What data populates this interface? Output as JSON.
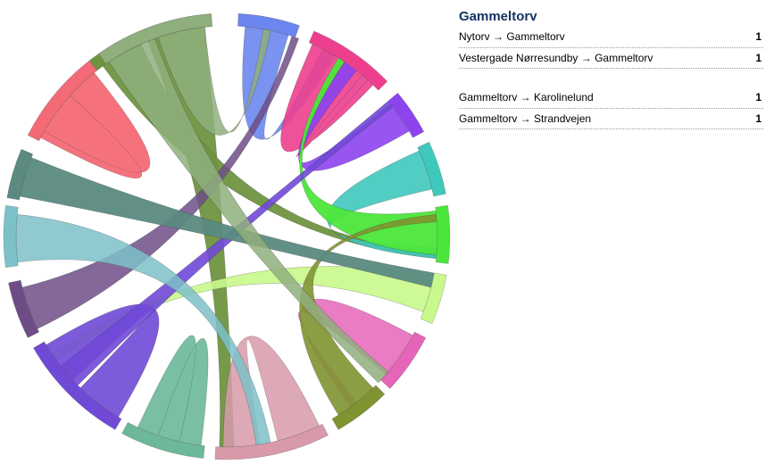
{
  "selected": "Gammeltorv",
  "incoming": [
    {
      "label": "Nytorv → Gammeltorv",
      "count": "1"
    },
    {
      "label": "Vestergade Nørresundby → Gammeltorv",
      "count": "1"
    }
  ],
  "outgoing": [
    {
      "label": "Gammeltorv → Karolinelund",
      "count": "1"
    },
    {
      "label": "Gammeltorv → Strandvejen",
      "count": "1"
    }
  ],
  "colors": {
    "olive": "#6f9440",
    "blue": "#6b86ee",
    "magenta": "#ee3f8e",
    "purple": "#8d43ee",
    "teal": "#3fc8bc",
    "green": "#4ce63a",
    "lime": "#c9f88c",
    "pink": "#e665b9",
    "olive2": "#7f9330",
    "dusty": "#d89aa9",
    "seafoam": "#6cb899",
    "violet": "#7049d6",
    "plum": "#6e4d87",
    "cyan": "#7cc1c8",
    "slate": "#5a8a80",
    "coral": "#f46a76",
    "sage": "#8faf7d",
    "title": "#14335f"
  }
}
